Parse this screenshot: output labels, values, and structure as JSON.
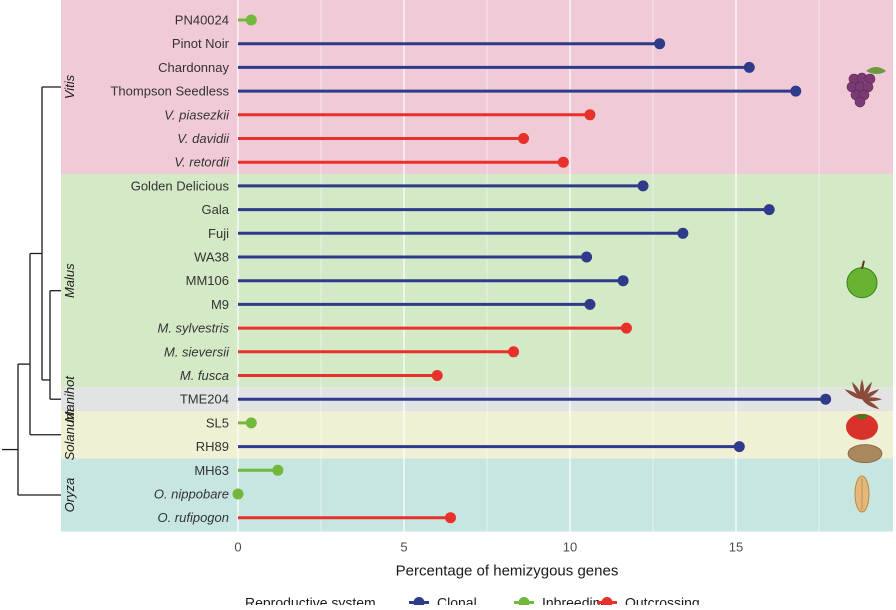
{
  "chart_data": {
    "type": "lollipop",
    "xlabel": "Percentage of hemizygous genes",
    "xlim": [
      0,
      18.5
    ],
    "xticks": [
      0,
      5,
      10,
      15
    ],
    "grid": true,
    "legend": {
      "title": "Reproductive system",
      "placement": "bottom",
      "items": [
        {
          "key": "Clonal",
          "label": "Clonal",
          "color": "#2e3b8a"
        },
        {
          "key": "Inbreeding",
          "label": "Inbreeding",
          "color": "#72b83a"
        },
        {
          "key": "Outcrossing",
          "label": "Outcrossing",
          "color": "#e8312a"
        }
      ]
    },
    "groups": [
      {
        "name": "Vitis",
        "color": "#f0cbd7",
        "icon": "grape-icon",
        "rows": 7
      },
      {
        "name": "Malus",
        "color": "#d4e9c6",
        "icon": "apple-icon",
        "rows": 9
      },
      {
        "name": "Manihot",
        "color": "#e2e4e3",
        "icon": "cassava-leaf-icon",
        "rows": 1
      },
      {
        "name": "Solanum",
        "color": "#f0f0d5",
        "icon": "tomato-potato-icon",
        "rows": 2
      },
      {
        "name": "Oryza",
        "color": "#c8e6e1",
        "icon": "rice-grain-icon",
        "rows": 3
      }
    ],
    "rows": [
      {
        "label": "PN40024",
        "italic": false,
        "value": 0.4,
        "system": "Inbreeding"
      },
      {
        "label": "Pinot Noir",
        "italic": false,
        "value": 12.7,
        "system": "Clonal"
      },
      {
        "label": "Chardonnay",
        "italic": false,
        "value": 15.4,
        "system": "Clonal"
      },
      {
        "label": "Thompson Seedless",
        "italic": false,
        "value": 16.8,
        "system": "Clonal"
      },
      {
        "label": "V. piasezkii",
        "italic": true,
        "value": 10.6,
        "system": "Outcrossing"
      },
      {
        "label": "V. davidii",
        "italic": true,
        "value": 8.6,
        "system": "Outcrossing"
      },
      {
        "label": "V. retordii",
        "italic": true,
        "value": 9.8,
        "system": "Outcrossing"
      },
      {
        "label": "Golden Delicious",
        "italic": false,
        "value": 12.2,
        "system": "Clonal"
      },
      {
        "label": "Gala",
        "italic": false,
        "value": 16.0,
        "system": "Clonal"
      },
      {
        "label": "Fuji",
        "italic": false,
        "value": 13.4,
        "system": "Clonal"
      },
      {
        "label": "WA38",
        "italic": false,
        "value": 10.5,
        "system": "Clonal"
      },
      {
        "label": "MM106",
        "italic": false,
        "value": 11.6,
        "system": "Clonal"
      },
      {
        "label": "M9",
        "italic": false,
        "value": 10.6,
        "system": "Clonal"
      },
      {
        "label": "M. sylvestris",
        "italic": true,
        "value": 11.7,
        "system": "Outcrossing"
      },
      {
        "label": "M. sieversii",
        "italic": true,
        "value": 8.3,
        "system": "Outcrossing"
      },
      {
        "label": "M. fusca",
        "italic": true,
        "value": 6.0,
        "system": "Outcrossing"
      },
      {
        "label": "TME204",
        "italic": false,
        "value": 17.7,
        "system": "Clonal"
      },
      {
        "label": "SL5",
        "italic": false,
        "value": 0.4,
        "system": "Inbreeding"
      },
      {
        "label": "RH89",
        "italic": false,
        "value": 15.1,
        "system": "Clonal"
      },
      {
        "label": "MH63",
        "italic": false,
        "value": 1.2,
        "system": "Inbreeding"
      },
      {
        "label": "O. nippobare",
        "italic": true,
        "value": 0.0,
        "system": "Inbreeding"
      },
      {
        "label": "O. rufipogon",
        "italic": true,
        "value": 6.4,
        "system": "Outcrossing"
      }
    ]
  }
}
